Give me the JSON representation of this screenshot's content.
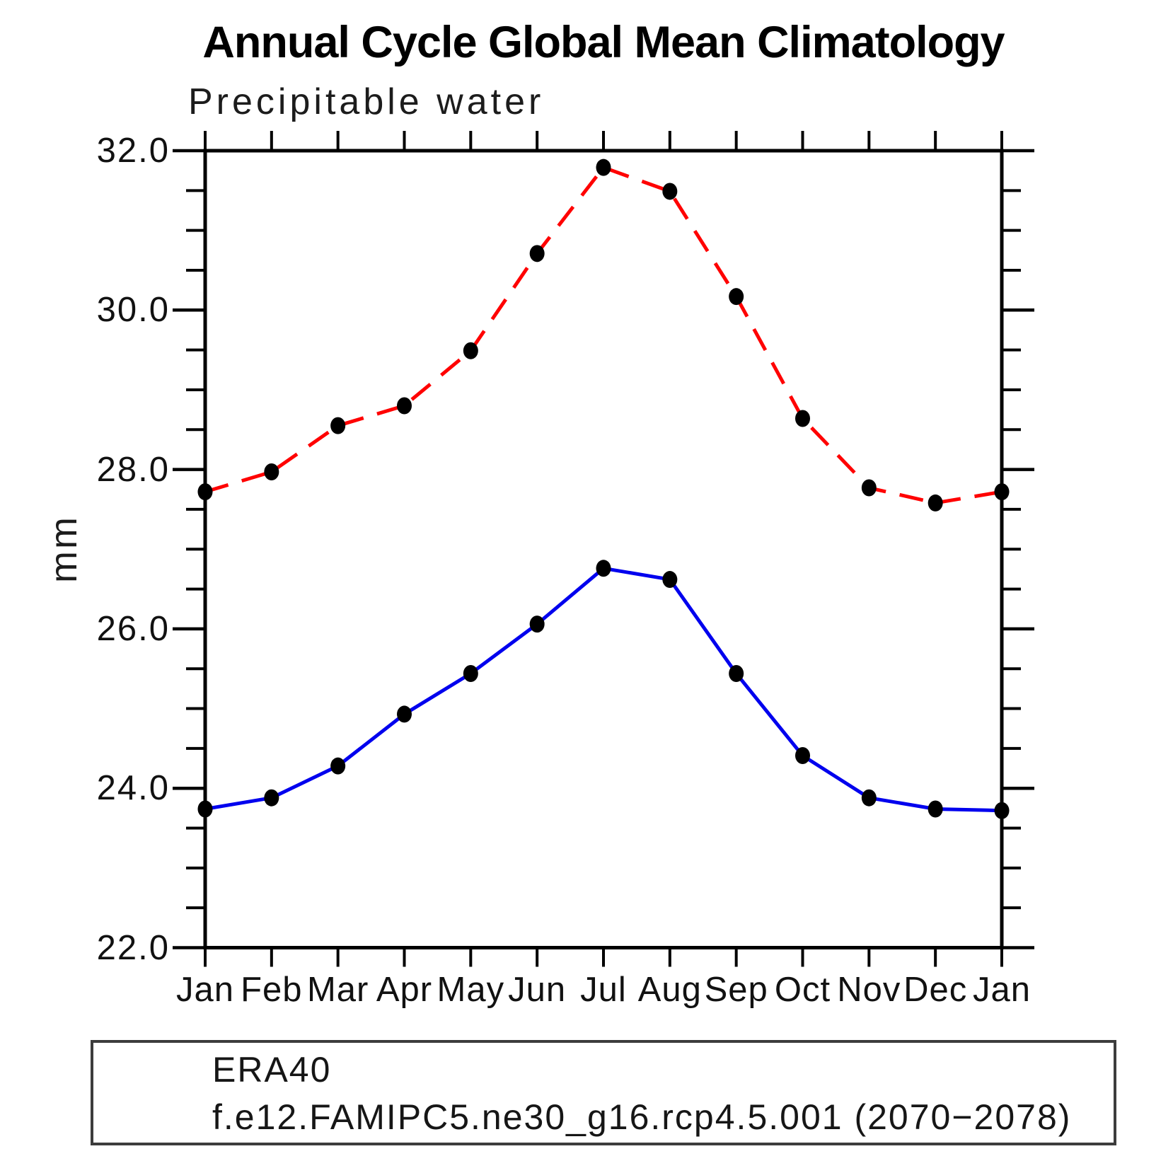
{
  "title": "Annual Cycle Global Mean Climatology",
  "chart_data": {
    "type": "line",
    "title": "Annual Cycle Global Mean Climatology",
    "subtitle": "Precipitable water",
    "ylabel": "mm",
    "xlabel": "",
    "categories": [
      "Jan",
      "Feb",
      "Mar",
      "Apr",
      "May",
      "Jun",
      "Jul",
      "Aug",
      "Sep",
      "Oct",
      "Nov",
      "Dec",
      "Jan"
    ],
    "series": [
      {
        "name": "ERA40",
        "line_color": "#0000ee",
        "line_style": "solid",
        "marker": "filled-circle",
        "marker_color": "#000000",
        "values": [
          23.74,
          23.88,
          24.28,
          24.93,
          25.44,
          26.06,
          26.76,
          26.62,
          25.44,
          24.41,
          23.88,
          23.74,
          23.72
        ]
      },
      {
        "name": "f.e12.FAMIPC5.ne30_g16.rcp4.5.001 (2070−2078)",
        "line_color": "#ff0000",
        "line_style": "dashed",
        "marker": "filled-circle",
        "marker_color": "#000000",
        "values": [
          27.72,
          27.97,
          28.55,
          28.8,
          29.49,
          30.71,
          31.79,
          31.49,
          30.17,
          28.64,
          27.77,
          27.58,
          27.72
        ]
      }
    ],
    "ylim": [
      22.0,
      32.0
    ],
    "ytick_major": [
      22.0,
      24.0,
      26.0,
      28.0,
      30.0,
      32.0
    ],
    "ytick_labels": [
      "22.0",
      "24.0",
      "26.0",
      "28.0",
      "30.0",
      "32.0"
    ],
    "ytick_minor_step": 0.5,
    "grid": false,
    "legend_position": "bottom-left-box"
  }
}
